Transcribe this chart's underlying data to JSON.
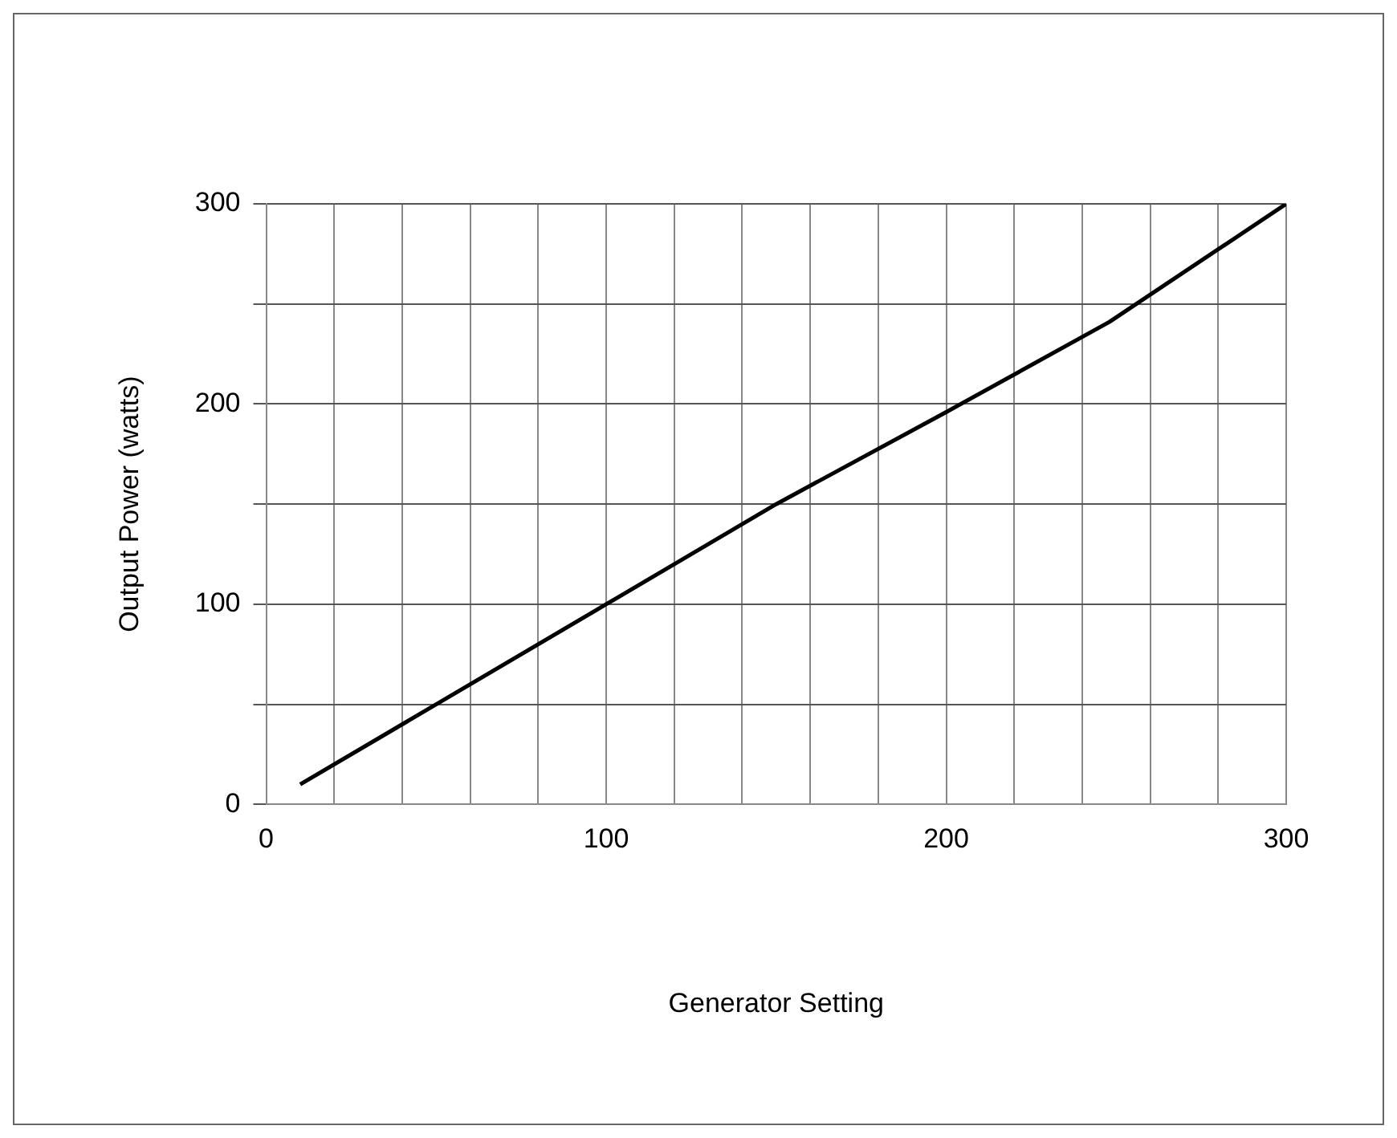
{
  "chart_data": {
    "type": "line",
    "xlabel": "Generator Setting",
    "ylabel": "Output Power (watts)",
    "x": [
      10,
      50,
      100,
      150,
      200,
      248,
      300
    ],
    "series": [
      {
        "color": "#000000",
        "values": [
          10,
          50,
          100,
          150,
          196,
          241,
          300
        ]
      }
    ],
    "xlim": [
      0,
      300
    ],
    "ylim": [
      0,
      300
    ],
    "xticks": [
      0,
      {
        "value": 20,
        "label": null
      },
      {
        "value": 40,
        "label": null
      },
      {
        "value": 60,
        "label": null
      },
      {
        "value": 80,
        "label": null
      },
      100,
      {
        "value": 120,
        "label": null
      },
      {
        "value": 140,
        "label": null
      },
      {
        "value": 160,
        "label": null
      },
      {
        "value": 180,
        "label": null
      },
      200,
      {
        "value": 220,
        "label": null
      },
      {
        "value": 240,
        "label": null
      },
      {
        "value": 260,
        "label": null
      },
      {
        "value": 280,
        "label": null
      },
      300
    ],
    "yticks": [
      0,
      {
        "value": 50,
        "label": null
      },
      100,
      {
        "value": 150,
        "label": null
      },
      200,
      {
        "value": 250,
        "label": null
      },
      300
    ],
    "grid": true,
    "marker": "none",
    "line_style": "solid",
    "legend": false
  }
}
